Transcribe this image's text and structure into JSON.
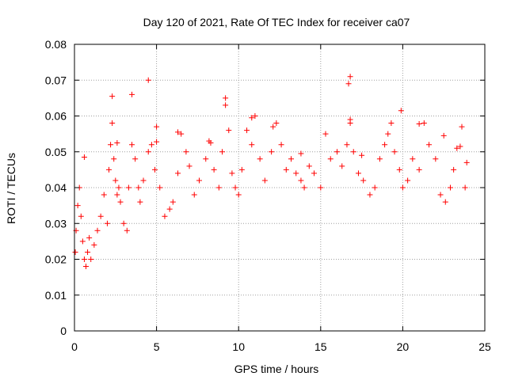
{
  "chart_data": {
    "type": "scatter",
    "title": "Day 120 of 2021, Rate Of TEC Index for receiver ca07",
    "xlabel": "GPS time / hours",
    "ylabel": "ROTI / TECUs",
    "xlim": [
      0,
      25
    ],
    "ylim": [
      0,
      0.08
    ],
    "x_ticks": [
      0,
      5,
      10,
      15,
      20,
      25
    ],
    "x_tick_labels": [
      "0",
      "5",
      "10",
      "15",
      "20",
      "25"
    ],
    "y_ticks": [
      0,
      0.01,
      0.02,
      0.03,
      0.04,
      0.05,
      0.06,
      0.07,
      0.08
    ],
    "y_tick_labels": [
      "0",
      "0.01",
      "0.02",
      "0.03",
      "0.04",
      "0.05",
      "0.06",
      "0.07",
      "0.08"
    ],
    "grid": true,
    "legend": "none",
    "marker": "plus",
    "color": "#ff0000",
    "series": [
      {
        "x": [
          0.05,
          0.1,
          0.2,
          0.3,
          0.4,
          0.5,
          0.6,
          0.7,
          0.8,
          0.9,
          1.0,
          1.2,
          1.4,
          1.6,
          1.8,
          2.0,
          2.1,
          2.2,
          2.3,
          2.4,
          2.5,
          2.6,
          2.7,
          2.8,
          3.0,
          3.2,
          3.3,
          3.5,
          3.7,
          3.9,
          4.0,
          4.2,
          4.5,
          4.7,
          4.9,
          5.0,
          5.2,
          5.5,
          5.8,
          6.0,
          6.3,
          6.5,
          6.8,
          7.0,
          7.3,
          7.6,
          8.0,
          8.2,
          8.5,
          8.8,
          9.0,
          9.2,
          9.4,
          9.6,
          9.8,
          10.0,
          10.2,
          10.5,
          10.8,
          11.0,
          11.3,
          11.6,
          12.0,
          12.3,
          12.6,
          12.9,
          13.2,
          13.5,
          13.8,
          14.0,
          14.3,
          14.6,
          15.0,
          15.3,
          15.6,
          16.0,
          16.3,
          16.6,
          16.8,
          17.0,
          17.3,
          17.6,
          18.0,
          18.3,
          18.6,
          18.9,
          19.1,
          19.3,
          19.5,
          19.8,
          20.0,
          20.3,
          20.6,
          21.0,
          21.3,
          21.6,
          22.0,
          22.3,
          22.6,
          22.9,
          23.1,
          23.3,
          23.6,
          23.8,
          23.9,
          4.5,
          3.5,
          2.3,
          16.8,
          16.7,
          16.8,
          19.9,
          9.2,
          12.1,
          10.8,
          21.0,
          22.5,
          23.5,
          6.3,
          8.3,
          0.6,
          2.6,
          5.0,
          13.8,
          17.5
        ],
        "y": [
          0.022,
          0.028,
          0.035,
          0.04,
          0.032,
          0.025,
          0.02,
          0.018,
          0.022,
          0.026,
          0.02,
          0.024,
          0.028,
          0.032,
          0.038,
          0.03,
          0.045,
          0.052,
          0.058,
          0.048,
          0.042,
          0.038,
          0.04,
          0.036,
          0.03,
          0.028,
          0.04,
          0.052,
          0.048,
          0.04,
          0.036,
          0.042,
          0.05,
          0.052,
          0.045,
          0.057,
          0.04,
          0.032,
          0.034,
          0.036,
          0.044,
          0.055,
          0.05,
          0.046,
          0.038,
          0.042,
          0.048,
          0.053,
          0.045,
          0.04,
          0.05,
          0.065,
          0.056,
          0.044,
          0.04,
          0.038,
          0.045,
          0.056,
          0.052,
          0.06,
          0.048,
          0.042,
          0.05,
          0.058,
          0.052,
          0.045,
          0.048,
          0.044,
          0.042,
          0.04,
          0.046,
          0.044,
          0.04,
          0.055,
          0.048,
          0.05,
          0.046,
          0.052,
          0.058,
          0.05,
          0.044,
          0.042,
          0.038,
          0.04,
          0.048,
          0.052,
          0.055,
          0.058,
          0.05,
          0.045,
          0.04,
          0.042,
          0.048,
          0.045,
          0.058,
          0.052,
          0.048,
          0.038,
          0.036,
          0.04,
          0.045,
          0.051,
          0.057,
          0.04,
          0.047,
          0.07,
          0.066,
          0.0655,
          0.071,
          0.069,
          0.059,
          0.0615,
          0.063,
          0.057,
          0.0595,
          0.0578,
          0.0545,
          0.0515,
          0.0555,
          0.0525,
          0.0485,
          0.0525,
          0.0528,
          0.0495,
          0.049
        ]
      }
    ]
  }
}
